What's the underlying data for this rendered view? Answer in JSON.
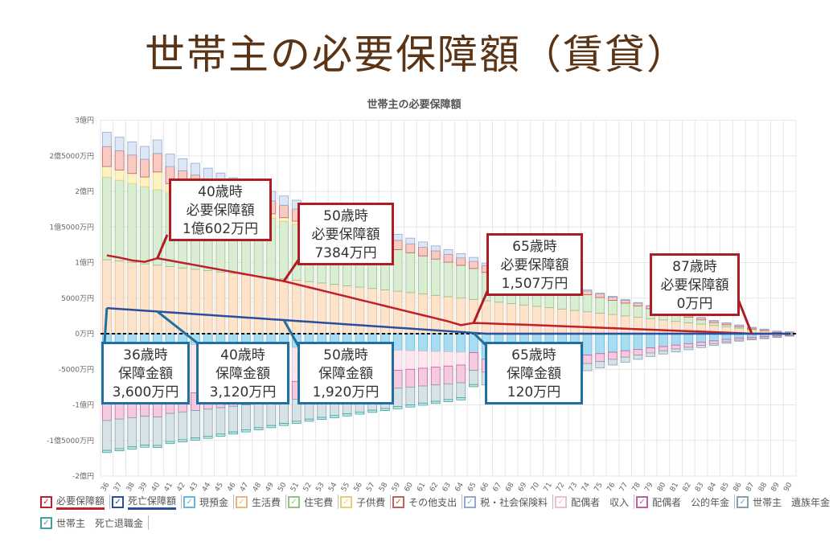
{
  "page_title": "世帯主の必要保障額（賃貸）",
  "chart_data": {
    "type": "bar",
    "title": "世帯主の必要保障額",
    "unit": "万円",
    "categories": [
      36,
      37,
      38,
      39,
      40,
      41,
      42,
      43,
      44,
      45,
      46,
      47,
      48,
      49,
      50,
      51,
      52,
      53,
      54,
      55,
      56,
      57,
      58,
      59,
      60,
      61,
      62,
      63,
      64,
      65,
      66,
      67,
      68,
      69,
      70,
      71,
      72,
      73,
      74,
      75,
      76,
      77,
      78,
      79,
      80,
      81,
      82,
      83,
      84,
      85,
      86,
      87,
      88,
      89,
      90
    ],
    "ylim": [
      -20000,
      30000
    ],
    "y_ticks": [
      {
        "value": 30000,
        "label": "3億円"
      },
      {
        "value": 25000,
        "label": "2億5000万円"
      },
      {
        "value": 20000,
        "label": "2億円"
      },
      {
        "value": 15000,
        "label": "1億5000万円"
      },
      {
        "value": 10000,
        "label": "1億円"
      },
      {
        "value": 5000,
        "label": "5000万円"
      },
      {
        "value": 0,
        "label": "0万円"
      },
      {
        "value": -5000,
        "label": "-5000万円"
      },
      {
        "value": -10000,
        "label": "-1億円"
      },
      {
        "value": -15000,
        "label": "-1億5000万円"
      },
      {
        "value": -20000,
        "label": "-2億円"
      }
    ],
    "grid": true,
    "legend_position": "bottom",
    "series": [
      {
        "name": "必要保障額",
        "kind": "line",
        "color": "#c0202a",
        "values": [
          11000,
          10700,
          10300,
          10100,
          10602,
          10280,
          9960,
          9640,
          9310,
          8990,
          8670,
          8350,
          8030,
          7710,
          7384,
          6950,
          6510,
          6080,
          5640,
          5210,
          4770,
          4340,
          3900,
          3470,
          3030,
          2600,
          2170,
          1730,
          1200,
          1507,
          1450,
          1390,
          1330,
          1270,
          1200,
          1130,
          1060,
          990,
          920,
          850,
          780,
          710,
          640,
          570,
          500,
          430,
          360,
          290,
          220,
          150,
          80,
          0,
          0,
          0,
          0
        ]
      },
      {
        "name": "死亡保障額",
        "kind": "line",
        "color": "#2a4f9a",
        "values": [
          3600,
          3480,
          3360,
          3240,
          3120,
          3000,
          2880,
          2760,
          2640,
          2520,
          2400,
          2280,
          2160,
          2040,
          1920,
          1800,
          1680,
          1560,
          1440,
          1320,
          1200,
          1080,
          960,
          840,
          720,
          600,
          480,
          360,
          240,
          120,
          0,
          0,
          0,
          0,
          0,
          0,
          0,
          0,
          0,
          0,
          0,
          0,
          0,
          0,
          0,
          0,
          0,
          0,
          0,
          0,
          0,
          0,
          0,
          0,
          0
        ]
      },
      {
        "name": "現預金",
        "kind": "bar",
        "color": "#a8dcf0",
        "border": "#62b8de",
        "values": [
          -1200,
          -1250,
          -1300,
          -1350,
          -1700,
          -1450,
          -1500,
          -1550,
          -1600,
          -1650,
          -1700,
          -1750,
          -1800,
          -1850,
          -1900,
          -1950,
          -2000,
          -2050,
          -2100,
          -2150,
          -2200,
          -2250,
          -2300,
          -2350,
          -2400,
          -2450,
          -2500,
          -2550,
          -2600,
          -2650,
          -3600,
          -3600,
          -3600,
          -3500,
          -3500,
          -3400,
          -3300,
          -3200,
          -3000,
          -2800,
          -2600,
          -2400,
          -2200,
          -2000,
          -1800,
          -1600,
          -1400,
          -1200,
          -1000,
          -800,
          -600,
          -500,
          -400,
          -300,
          -200
        ]
      },
      {
        "name": "生活費",
        "kind": "bar",
        "color": "#fde2cc",
        "border": "#eeb47e",
        "values": [
          10400,
          10210,
          10020,
          9820,
          9630,
          9440,
          9240,
          9050,
          8860,
          8670,
          8470,
          8280,
          8090,
          7900,
          7700,
          7510,
          7320,
          7130,
          6930,
          6740,
          6550,
          6360,
          6160,
          5970,
          5780,
          5590,
          5390,
          5200,
          5010,
          4820,
          4620,
          4430,
          4240,
          4040,
          3850,
          3660,
          3470,
          3270,
          3080,
          2890,
          2700,
          2500,
          2310,
          2120,
          1930,
          1730,
          1540,
          1350,
          1160,
          960,
          770,
          580,
          390,
          190,
          100
        ]
      },
      {
        "name": "住宅費",
        "kind": "bar",
        "color": "#d8edd2",
        "border": "#92c284",
        "values": [
          11600,
          11350,
          11100,
          10850,
          10600,
          10350,
          10100,
          9850,
          9600,
          9350,
          9100,
          8850,
          8600,
          8350,
          8100,
          7850,
          7600,
          7350,
          7100,
          6850,
          6600,
          6350,
          6100,
          5850,
          5600,
          5350,
          5100,
          4850,
          4600,
          4350,
          4000,
          3800,
          3600,
          3400,
          3200,
          3000,
          2800,
          2600,
          2400,
          2200,
          2000,
          1800,
          1600,
          1400,
          1200,
          1000,
          800,
          600,
          400,
          300,
          200,
          100,
          50,
          0,
          0
        ]
      },
      {
        "name": "子供費",
        "kind": "bar",
        "color": "#fdf3c2",
        "border": "#e8d070",
        "values": [
          1500,
          1450,
          1400,
          1350,
          2500,
          1300,
          1250,
          1200,
          1100,
          1000,
          900,
          800,
          700,
          600,
          500,
          450,
          400,
          350,
          300,
          250,
          200,
          150,
          100,
          0,
          0,
          0,
          0,
          0,
          0,
          0,
          0,
          0,
          0,
          0,
          0,
          0,
          0,
          0,
          0,
          0,
          0,
          0,
          0,
          0,
          0,
          0,
          0,
          0,
          0,
          0,
          0,
          0,
          0,
          0,
          0
        ]
      },
      {
        "name": "その他支出",
        "kind": "bar",
        "color": "#f8cac2",
        "border": "#c2605c",
        "values": [
          2800,
          2700,
          2600,
          2500,
          2600,
          2400,
          2300,
          2200,
          2100,
          2000,
          1950,
          1900,
          1850,
          1800,
          1750,
          1700,
          1650,
          1600,
          1550,
          1500,
          1450,
          1400,
          1350,
          1300,
          1250,
          1200,
          1150,
          1100,
          1050,
          1000,
          950,
          900,
          850,
          800,
          750,
          700,
          650,
          600,
          550,
          500,
          450,
          400,
          380,
          360,
          340,
          320,
          300,
          280,
          260,
          240,
          220,
          200,
          180,
          160,
          150
        ]
      },
      {
        "name": "税・社会保険料",
        "kind": "bar",
        "color": "#dce6f5",
        "border": "#92aad2",
        "values": [
          2000,
          1900,
          1850,
          1800,
          1900,
          1750,
          1700,
          1650,
          1600,
          1550,
          1500,
          1450,
          1400,
          1350,
          1300,
          1250,
          1200,
          1150,
          1100,
          1050,
          1000,
          950,
          900,
          850,
          800,
          750,
          700,
          650,
          600,
          550,
          300,
          300,
          280,
          260,
          240,
          220,
          200,
          180,
          160,
          140,
          120,
          100,
          100,
          90,
          80,
          70,
          60,
          50,
          50,
          40,
          40,
          30,
          30,
          20,
          20
        ]
      },
      {
        "name": "配偶者　収入",
        "kind": "bar",
        "color": "#fde6ee",
        "border": "#f0bcd0",
        "values": [
          -8500,
          -8250,
          -8000,
          -7750,
          -7500,
          -7250,
          -7000,
          -6750,
          -6500,
          -6250,
          -6000,
          -5750,
          -5500,
          -5250,
          -5000,
          -4750,
          -4500,
          -4250,
          -4000,
          -3750,
          -3500,
          -3250,
          -3000,
          -2800,
          -2600,
          -2400,
          -2200,
          -2000,
          -1800,
          0,
          0,
          0,
          0,
          0,
          0,
          0,
          0,
          0,
          0,
          0,
          0,
          0,
          0,
          0,
          0,
          0,
          0,
          0,
          0,
          0,
          0,
          0,
          0,
          0,
          0
        ]
      },
      {
        "name": "配偶者　公的年金",
        "kind": "bar",
        "color": "#f6cade",
        "border": "#c0609e",
        "values": [
          -2500,
          -2500,
          -2500,
          -2500,
          -2500,
          -2500,
          -2500,
          -2500,
          -2500,
          -2500,
          -2500,
          -2500,
          -2500,
          -2500,
          -2500,
          -2500,
          -2500,
          -2500,
          -2500,
          -2500,
          -2500,
          -2500,
          -2500,
          -2500,
          -2500,
          -2500,
          -2500,
          -2500,
          -2500,
          -2500,
          -1800,
          -1750,
          -1700,
          -1650,
          -1600,
          -1500,
          -1400,
          -1300,
          -1200,
          -1100,
          -1000,
          -900,
          -800,
          -700,
          -600,
          -550,
          -500,
          -450,
          -400,
          -350,
          -300,
          -250,
          -200,
          -150,
          -100
        ]
      },
      {
        "name": "世帯主　遺族年金",
        "kind": "bar",
        "color": "#d6e2e6",
        "border": "#82a2b2",
        "values": [
          -4200,
          -4150,
          -4100,
          -4050,
          -4000,
          -3950,
          -3900,
          -3850,
          -3800,
          -3700,
          -3600,
          -3500,
          -3400,
          -3300,
          -3200,
          -3100,
          -3000,
          -2950,
          -2900,
          -2850,
          -2800,
          -2750,
          -2700,
          -2600,
          -2500,
          -2400,
          -2300,
          -2200,
          -2100,
          -2000,
          -1800,
          -1700,
          -1600,
          -1500,
          -1400,
          -1300,
          -1200,
          -1100,
          -1000,
          -900,
          -800,
          -700,
          -600,
          -500,
          -450,
          -400,
          -350,
          -300,
          -250,
          -200,
          -150,
          -120,
          -100,
          -80,
          -50
        ]
      },
      {
        "name": "世帯主　死亡退職金",
        "kind": "bar",
        "color": "#c2eaea",
        "border": "#3ea2a2",
        "values": [
          -300,
          -300,
          -300,
          -300,
          -300,
          -300,
          -300,
          -300,
          -300,
          -300,
          -300,
          -300,
          -300,
          -300,
          -300,
          -300,
          -300,
          -300,
          -300,
          -300,
          -300,
          -300,
          -300,
          -300,
          -300,
          -300,
          -300,
          -300,
          -300,
          -300,
          0,
          0,
          0,
          0,
          0,
          0,
          0,
          0,
          0,
          0,
          0,
          0,
          0,
          0,
          0,
          0,
          0,
          0,
          0,
          0,
          0,
          0,
          0,
          0,
          0
        ]
      }
    ],
    "annotations": [
      {
        "lines": [
          "40歳時",
          "必要保障額",
          "1億602万円"
        ],
        "series": "必要保障額",
        "age": 40,
        "value": 10602
      },
      {
        "lines": [
          "50歳時",
          "必要保障額",
          "7384万円"
        ],
        "series": "必要保障額",
        "age": 50,
        "value": 7384
      },
      {
        "lines": [
          "65歳時",
          "必要保障額",
          "1,507万円"
        ],
        "series": "必要保障額",
        "age": 65,
        "value": 1507
      },
      {
        "lines": [
          "87歳時",
          "必要保障額",
          "0万円"
        ],
        "series": "必要保障額",
        "age": 87,
        "value": 0
      },
      {
        "lines": [
          "36歳時",
          "保障金額",
          "3,600万円"
        ],
        "series": "死亡保障額",
        "age": 36,
        "value": 3600
      },
      {
        "lines": [
          "40歳時",
          "保障金額",
          "3,120万円"
        ],
        "series": "死亡保障額",
        "age": 40,
        "value": 3120
      },
      {
        "lines": [
          "50歳時",
          "保障金額",
          "1,920万円"
        ],
        "series": "死亡保障額",
        "age": 50,
        "value": 1920
      },
      {
        "lines": [
          "65歳時",
          "保障金額",
          "120万円"
        ],
        "series": "死亡保障額",
        "age": 65,
        "value": 120
      }
    ]
  }
}
